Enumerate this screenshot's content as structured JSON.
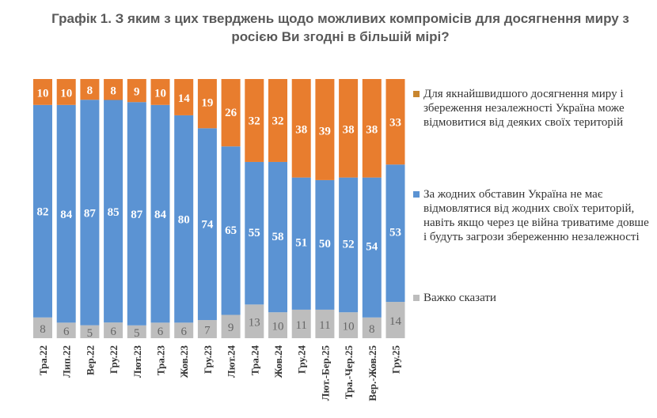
{
  "chart_data": {
    "type": "bar",
    "stacked": true,
    "title": "Графік 1. З яким з цих тверджень щодо можливих компромісів для досягнення миру з росією Ви згодні в більшій мірі?",
    "categories": [
      "Тра.22",
      "Лип.22",
      "Вер.22",
      "Гру.22",
      "Лют.23",
      "Тра.23",
      "Жов.23",
      "Гру.23",
      "Лют.24",
      "Тра.24",
      "Жов.24",
      "Гру.24",
      "Лют.-Бер.25",
      "Тра.-Чер.25",
      "Вер.-Жов.25",
      "Гру.25"
    ],
    "series": [
      {
        "name": "Важко сказати",
        "color": "#BDBDBD",
        "label_color": "#666666",
        "values": [
          8,
          6,
          5,
          6,
          5,
          6,
          6,
          7,
          9,
          13,
          10,
          11,
          11,
          10,
          8,
          14
        ]
      },
      {
        "name": "За жодних обставин Україна не має відмовлятися від жодних своїх територій, навіть якщо через це війна триватиме довше і будуть загрози збереженню незалежності",
        "color": "#5B93D3",
        "label_color": "#ffffff",
        "values": [
          82,
          84,
          87,
          85,
          87,
          84,
          80,
          74,
          65,
          55,
          58,
          51,
          50,
          52,
          54,
          53
        ]
      },
      {
        "name": "Для якнайшвидшого досягнення миру і збереження незалежності Україна може відмовитися від деяких своїх територій",
        "color": "#E87D2E",
        "label_color": "#ffffff",
        "values": [
          10,
          10,
          8,
          8,
          9,
          10,
          14,
          19,
          26,
          32,
          32,
          38,
          39,
          38,
          38,
          33
        ]
      }
    ],
    "legend_placement": "right",
    "legend_marker_colors": [
      "#C8862F",
      "#5B93D3",
      "#BDBDBD"
    ],
    "ylim": [
      0,
      100
    ],
    "grid": false
  }
}
